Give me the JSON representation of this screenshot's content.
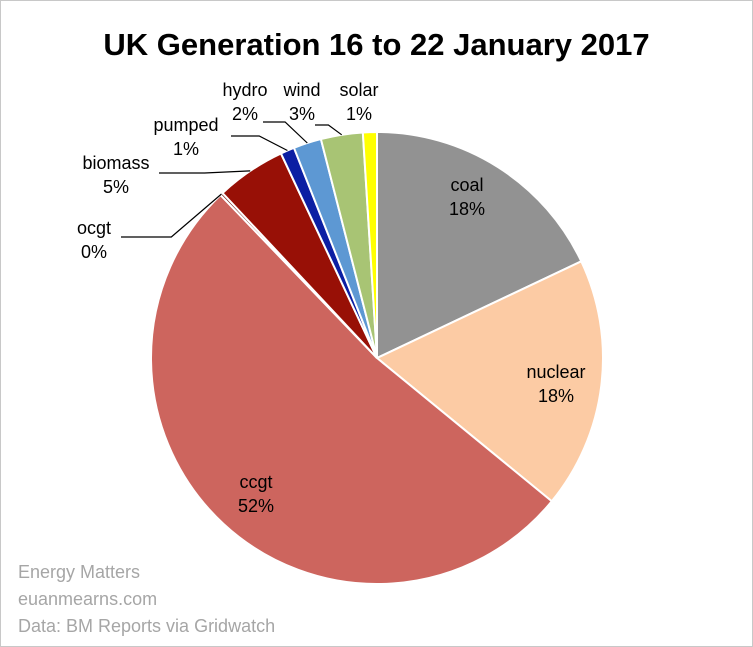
{
  "chart_data": {
    "type": "pie",
    "title": "UK Generation 16 to 22 January 2017",
    "slices": [
      {
        "label": "coal",
        "value": 18,
        "value_label": "18%",
        "color": "#929292"
      },
      {
        "label": "nuclear",
        "value": 18,
        "value_label": "18%",
        "color": "#fccba4"
      },
      {
        "label": "ccgt",
        "value": 52,
        "value_label": "52%",
        "color": "#cd655e"
      },
      {
        "label": "ocgt",
        "value": 0.2,
        "value_label": "0%",
        "color": "#6f1a14"
      },
      {
        "label": "biomass",
        "value": 5,
        "value_label": "5%",
        "color": "#981006"
      },
      {
        "label": "pumped",
        "value": 1,
        "value_label": "1%",
        "color": "#0c1fa3"
      },
      {
        "label": "hydro",
        "value": 2,
        "value_label": "2%",
        "color": "#5d98d3"
      },
      {
        "label": "wind",
        "value": 3,
        "value_label": "3%",
        "color": "#a8c474"
      },
      {
        "label": "solar",
        "value": 1,
        "value_label": "1%",
        "color": "#ffff00"
      }
    ]
  },
  "credits": {
    "line1": "Energy Matters",
    "line2": "euanmearns.com",
    "line3": "Data: BM Reports via Gridwatch"
  }
}
